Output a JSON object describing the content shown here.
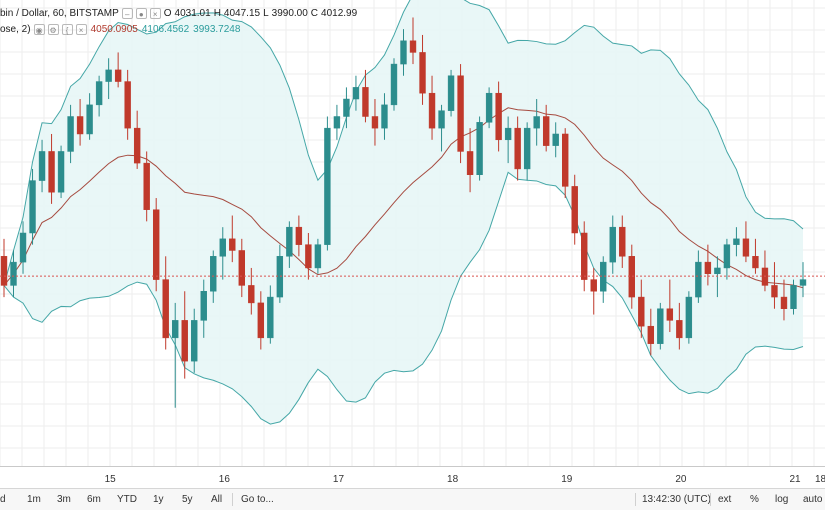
{
  "legend": {
    "symbol_title": "bin / Dollar, 60, BITSTAMP",
    "ohlc": {
      "o_label": "O",
      "o": "4031.01",
      "h_label": "H",
      "h": "4047.15",
      "l_label": "L",
      "l": "3990.00",
      "c_label": "C",
      "c": "4012.99"
    },
    "indicator_label": "ose, 2)",
    "bb_basis": "4050.0905",
    "bb_upper": "4106.4562",
    "bb_lower": "3993.7248"
  },
  "time_axis_labels": [
    "15",
    "16",
    "17",
    "18",
    "19",
    "20",
    "21",
    "18"
  ],
  "bottom_bar": {
    "ranges": [
      "d",
      "1m",
      "3m",
      "6m",
      "YTD",
      "1y",
      "5y",
      "All"
    ],
    "goto": "Go to...",
    "clock": "13:42:30 (UTC)",
    "toggles": [
      "ext",
      "%",
      "log",
      "auto"
    ]
  },
  "colors": {
    "up_candle": "#2c8d8d",
    "down_candle": "#c0392b",
    "band_line": "#45a7a7",
    "band_fill": "#e7f6f6",
    "basis_line": "#a64b40",
    "price_line": "#d9534f",
    "grid": "#eeeeee"
  },
  "chart_data": {
    "type": "candlestick",
    "title": "",
    "xlabel": "",
    "ylabel": "",
    "ylim": [
      3850,
      4250
    ],
    "x_day_ticks": [
      "15",
      "16",
      "17",
      "18",
      "19",
      "20",
      "21"
    ],
    "current_price_line": 4012.99,
    "note": "60-minute BTC/USD candles with Bollinger Bands (20, close, 2); values estimated from the plot.",
    "candles": [
      [
        4030,
        4045,
        3995,
        4005
      ],
      [
        4005,
        4035,
        3995,
        4025
      ],
      [
        4025,
        4060,
        4015,
        4050
      ],
      [
        4050,
        4105,
        4040,
        4095
      ],
      [
        4095,
        4130,
        4085,
        4120
      ],
      [
        4120,
        4135,
        4075,
        4085
      ],
      [
        4085,
        4125,
        4080,
        4120
      ],
      [
        4120,
        4160,
        4110,
        4150
      ],
      [
        4150,
        4165,
        4125,
        4135
      ],
      [
        4135,
        4170,
        4130,
        4160
      ],
      [
        4160,
        4185,
        4150,
        4180
      ],
      [
        4180,
        4200,
        4165,
        4190
      ],
      [
        4190,
        4205,
        4175,
        4180
      ],
      [
        4180,
        4190,
        4130,
        4140
      ],
      [
        4140,
        4155,
        4105,
        4110
      ],
      [
        4110,
        4120,
        4060,
        4070
      ],
      [
        4070,
        4080,
        4000,
        4010
      ],
      [
        4010,
        4030,
        3950,
        3960
      ],
      [
        3960,
        3990,
        3900,
        3975
      ],
      [
        3975,
        4000,
        3925,
        3940
      ],
      [
        3940,
        3985,
        3930,
        3975
      ],
      [
        3975,
        4010,
        3960,
        4000
      ],
      [
        4000,
        4035,
        3990,
        4030
      ],
      [
        4030,
        4055,
        4010,
        4045
      ],
      [
        4045,
        4065,
        4025,
        4035
      ],
      [
        4035,
        4045,
        3995,
        4005
      ],
      [
        4005,
        4020,
        3980,
        3990
      ],
      [
        3990,
        4000,
        3950,
        3960
      ],
      [
        3960,
        4005,
        3955,
        3995
      ],
      [
        3995,
        4040,
        3990,
        4030
      ],
      [
        4030,
        4060,
        4020,
        4055
      ],
      [
        4055,
        4065,
        4030,
        4040
      ],
      [
        4040,
        4050,
        4010,
        4020
      ],
      [
        4020,
        4045,
        4015,
        4040
      ],
      [
        4040,
        4150,
        4035,
        4140
      ],
      [
        4140,
        4160,
        4130,
        4150
      ],
      [
        4150,
        4175,
        4140,
        4165
      ],
      [
        4165,
        4185,
        4155,
        4175
      ],
      [
        4175,
        4190,
        4145,
        4150
      ],
      [
        4150,
        4165,
        4125,
        4140
      ],
      [
        4140,
        4170,
        4130,
        4160
      ],
      [
        4160,
        4200,
        4155,
        4195
      ],
      [
        4195,
        4225,
        4185,
        4215
      ],
      [
        4215,
        4235,
        4195,
        4205
      ],
      [
        4205,
        4220,
        4160,
        4170
      ],
      [
        4170,
        4185,
        4130,
        4140
      ],
      [
        4140,
        4160,
        4120,
        4155
      ],
      [
        4155,
        4190,
        4150,
        4185
      ],
      [
        4185,
        4195,
        4110,
        4120
      ],
      [
        4120,
        4140,
        4085,
        4100
      ],
      [
        4100,
        4150,
        4095,
        4145
      ],
      [
        4145,
        4175,
        4140,
        4170
      ],
      [
        4170,
        4180,
        4120,
        4130
      ],
      [
        4130,
        4150,
        4110,
        4140
      ],
      [
        4140,
        4150,
        4095,
        4105
      ],
      [
        4105,
        4145,
        4095,
        4140
      ],
      [
        4140,
        4165,
        4125,
        4150
      ],
      [
        4150,
        4160,
        4120,
        4125
      ],
      [
        4125,
        4145,
        4115,
        4135
      ],
      [
        4135,
        4140,
        4080,
        4090
      ],
      [
        4090,
        4100,
        4040,
        4050
      ],
      [
        4050,
        4060,
        4000,
        4010
      ],
      [
        4010,
        4020,
        3980,
        4000
      ],
      [
        4000,
        4030,
        3990,
        4025
      ],
      [
        4025,
        4065,
        4015,
        4055
      ],
      [
        4055,
        4065,
        4020,
        4030
      ],
      [
        4030,
        4040,
        3985,
        3995
      ],
      [
        3995,
        4010,
        3960,
        3970
      ],
      [
        3970,
        3985,
        3945,
        3955
      ],
      [
        3955,
        3990,
        3950,
        3985
      ],
      [
        3985,
        4010,
        3965,
        3975
      ],
      [
        3975,
        3990,
        3950,
        3960
      ],
      [
        3960,
        4000,
        3955,
        3995
      ],
      [
        3995,
        4035,
        3990,
        4025
      ],
      [
        4025,
        4040,
        4005,
        4015
      ],
      [
        4015,
        4030,
        3995,
        4020
      ],
      [
        4020,
        4045,
        4010,
        4040
      ],
      [
        4040,
        4055,
        4030,
        4045
      ],
      [
        4045,
        4060,
        4025,
        4030
      ],
      [
        4030,
        4045,
        4015,
        4020
      ],
      [
        4020,
        4035,
        4000,
        4005
      ],
      [
        4005,
        4025,
        3985,
        3995
      ],
      [
        3995,
        4010,
        3975,
        3985
      ],
      [
        3985,
        4010,
        3980,
        4005
      ],
      [
        4005,
        4025,
        3995,
        4010
      ]
    ]
  }
}
